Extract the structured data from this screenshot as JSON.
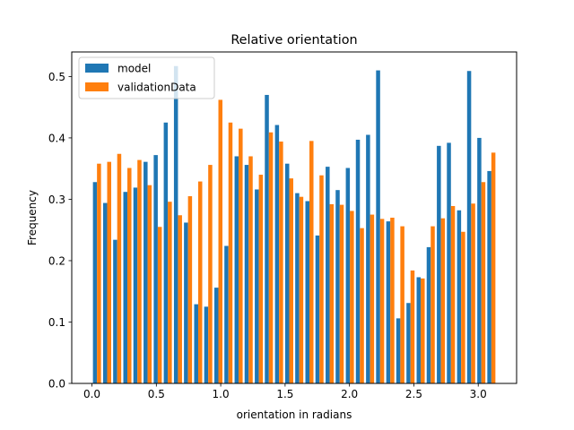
{
  "chart_data": {
    "type": "bar",
    "title": "Relative orientation",
    "xlabel": "orientation in radians",
    "ylabel": "Frequency",
    "xlim": [
      -0.157,
      3.298
    ],
    "ylim": [
      0.0,
      0.54
    ],
    "xticks": [
      0.0,
      0.5,
      1.0,
      1.5,
      2.0,
      2.5,
      3.0
    ],
    "xtick_labels": [
      "0.0",
      "0.5",
      "1.0",
      "1.5",
      "2.0",
      "2.5",
      "3.0"
    ],
    "yticks": [
      0.0,
      0.1,
      0.2,
      0.3,
      0.4,
      0.5
    ],
    "ytick_labels": [
      "0.0",
      "0.1",
      "0.2",
      "0.3",
      "0.4",
      "0.5"
    ],
    "grid": false,
    "legend_position": "upper-left",
    "bin_width": 0.0785,
    "x": [
      0.039,
      0.118,
      0.196,
      0.275,
      0.353,
      0.432,
      0.511,
      0.589,
      0.668,
      0.746,
      0.825,
      0.903,
      0.982,
      1.06,
      1.139,
      1.217,
      1.296,
      1.374,
      1.453,
      1.532,
      1.61,
      1.689,
      1.767,
      1.846,
      1.924,
      2.003,
      2.081,
      2.16,
      2.238,
      2.317,
      2.395,
      2.474,
      2.553,
      2.631,
      2.71,
      2.788,
      2.867,
      2.945,
      3.024,
      3.102
    ],
    "series": [
      {
        "name": "model",
        "color": "#1f77b4",
        "values": [
          0.328,
          0.294,
          0.234,
          0.312,
          0.319,
          0.361,
          0.372,
          0.425,
          0.517,
          0.262,
          0.129,
          0.125,
          0.156,
          0.224,
          0.37,
          0.356,
          0.316,
          0.47,
          0.421,
          0.358,
          0.31,
          0.297,
          0.241,
          0.353,
          0.315,
          0.351,
          0.397,
          0.405,
          0.51,
          0.264,
          0.106,
          0.131,
          0.173,
          0.222,
          0.387,
          0.392,
          0.282,
          0.509,
          0.4,
          0.346
        ]
      },
      {
        "name": "validationData",
        "color": "#ff7f0e",
        "values": [
          0.358,
          0.361,
          0.374,
          0.351,
          0.364,
          0.323,
          0.255,
          0.296,
          0.274,
          0.305,
          0.329,
          0.356,
          0.462,
          0.425,
          0.415,
          0.37,
          0.34,
          0.409,
          0.394,
          0.334,
          0.304,
          0.395,
          0.339,
          0.292,
          0.291,
          0.281,
          0.253,
          0.275,
          0.268,
          0.27,
          0.256,
          0.184,
          0.171,
          0.256,
          0.269,
          0.289,
          0.247,
          0.293,
          0.328,
          0.376
        ]
      }
    ]
  }
}
